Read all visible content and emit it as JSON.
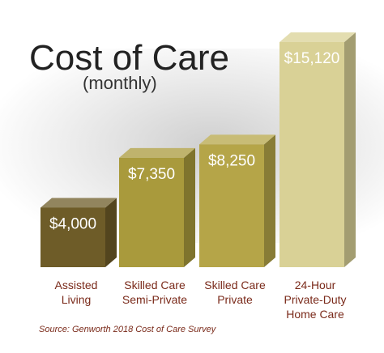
{
  "chart_data": {
    "type": "bar3d",
    "title": "Cost of Care",
    "subtitle": "(monthly)",
    "source": "Source: Genworth 2018 Cost of Care Survey",
    "categories": [
      [
        "Assisted",
        "Living"
      ],
      [
        "Skilled Care",
        "Semi-Private"
      ],
      [
        "Skilled Care",
        "Private"
      ],
      [
        "24-Hour",
        "Private-Duty",
        "Home Care"
      ]
    ],
    "values": [
      4000,
      7350,
      8250,
      15120
    ],
    "value_labels": [
      "$4,000",
      "$7,350",
      "$8,250",
      "$15,120"
    ],
    "colors": [
      "#6e5c28",
      "#a99a3c",
      "#b5a548",
      "#d9d196"
    ],
    "label_color": "#7a2a1a"
  }
}
